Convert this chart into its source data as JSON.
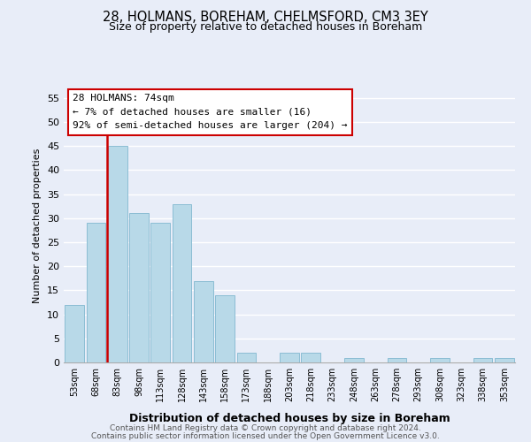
{
  "title": "28, HOLMANS, BOREHAM, CHELMSFORD, CM3 3EY",
  "subtitle": "Size of property relative to detached houses in Boreham",
  "xlabel": "Distribution of detached houses by size in Boreham",
  "ylabel": "Number of detached properties",
  "bar_labels": [
    "53sqm",
    "68sqm",
    "83sqm",
    "98sqm",
    "113sqm",
    "128sqm",
    "143sqm",
    "158sqm",
    "173sqm",
    "188sqm",
    "203sqm",
    "218sqm",
    "233sqm",
    "248sqm",
    "263sqm",
    "278sqm",
    "293sqm",
    "308sqm",
    "323sqm",
    "338sqm",
    "353sqm"
  ],
  "bar_values": [
    12,
    29,
    45,
    31,
    29,
    33,
    17,
    14,
    2,
    0,
    2,
    2,
    0,
    1,
    0,
    1,
    0,
    1,
    0,
    1,
    1
  ],
  "bar_color": "#b8d9e8",
  "bar_edge_color": "#8bbdd4",
  "ylim": [
    0,
    57
  ],
  "yticks": [
    0,
    5,
    10,
    15,
    20,
    25,
    30,
    35,
    40,
    45,
    50,
    55
  ],
  "vline_color": "#cc0000",
  "annotation_title": "28 HOLMANS: 74sqm",
  "annotation_line1": "← 7% of detached houses are smaller (16)",
  "annotation_line2": "92% of semi-detached houses are larger (204) →",
  "annotation_box_color": "#ffffff",
  "annotation_box_edge": "#cc0000",
  "footer1": "Contains HM Land Registry data © Crown copyright and database right 2024.",
  "footer2": "Contains public sector information licensed under the Open Government Licence v3.0.",
  "background_color": "#e8edf8",
  "grid_color": "#ffffff"
}
